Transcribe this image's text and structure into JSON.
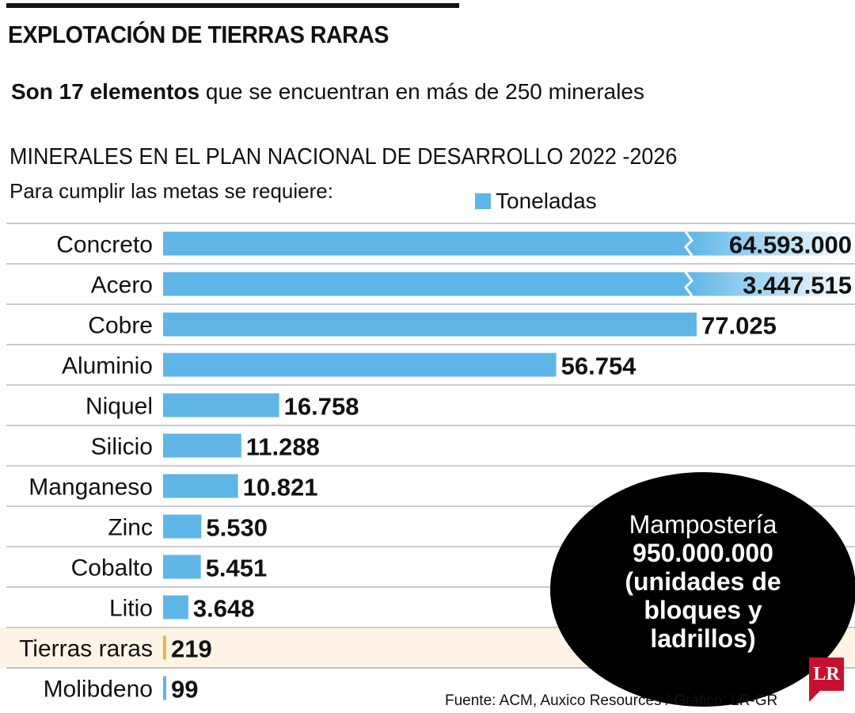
{
  "header": {
    "title": "EXPLOTACIÓN DE TIERRAS RARAS",
    "subtitle_bold": "Son 17 elementos",
    "subtitle_rest": " que se encuentran en más de 250 minerales"
  },
  "chart_data": {
    "type": "bar",
    "orientation": "horizontal",
    "title": "MINERALES EN EL PLAN NACIONAL DE DESARROLLO 2022 -2026",
    "subtitle": "Para cumplir las metas se requiere:",
    "legend": "Toneladas",
    "categories": [
      "Concreto",
      "Acero",
      "Cobre",
      "Aluminio",
      "Niquel",
      "Silicio",
      "Manganeso",
      "Zinc",
      "Cobalto",
      "Litio",
      "Tierras raras",
      "Molibdeno"
    ],
    "values": [
      64593000,
      3447515,
      77025,
      56754,
      16758,
      11288,
      10821,
      5530,
      5451,
      3648,
      219,
      99
    ],
    "value_labels": [
      "64.593.000",
      "3.447.515",
      "77.025",
      "56.754",
      "16.758",
      "11.288",
      "10.821",
      "5.530",
      "5.451",
      "3.648",
      "219",
      "99"
    ],
    "broken_axis_bars": [
      "Concreto",
      "Acero"
    ],
    "highlight": "Tierras raras",
    "colors": {
      "bar": "#5fb6e6",
      "highlight_bar": "#e8b84b",
      "highlight_bg": "#fdf4e6"
    }
  },
  "callout": {
    "label": "Mampostería",
    "value": "950.000.000",
    "unit": "(unidades de bloques y ladrillos)"
  },
  "footer": {
    "source": "Fuente: ACM, Auxico Resources / Gráfico: LR-GR",
    "logo": "LR"
  }
}
